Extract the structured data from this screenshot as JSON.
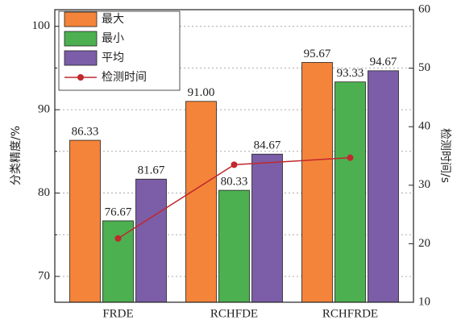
{
  "chart_data": {
    "type": "bar",
    "categories": [
      "FRDE",
      "RCHFDE",
      "RCHFRDE"
    ],
    "ylabel": "分类精度/%",
    "y2label": "检测时间/s",
    "ylim": [
      66.9,
      102.0
    ],
    "yticks": [
      70,
      80,
      90,
      100
    ],
    "y_minor_ticks": [
      75,
      85,
      95
    ],
    "y2lim": [
      10,
      60
    ],
    "y2ticks": [
      10,
      20,
      30,
      40,
      50,
      60
    ],
    "grid": true,
    "legend": "upper left",
    "series": [
      {
        "name": "最大",
        "color": "#f4843a",
        "values": [
          86.33,
          91.0,
          95.67
        ],
        "value_labels": [
          "86.33",
          "91.00",
          "95.67"
        ]
      },
      {
        "name": "最小",
        "color": "#4cb050",
        "values": [
          76.67,
          80.33,
          93.33
        ],
        "value_labels": [
          "76.67",
          "80.33",
          "93.33"
        ]
      },
      {
        "name": "平均",
        "color": "#7b5ea7",
        "values": [
          81.67,
          84.67,
          94.67
        ],
        "value_labels": [
          "81.67",
          "84.67",
          "94.67"
        ]
      },
      {
        "name": "检测时间",
        "color": "#c0282d",
        "type": "line",
        "axis": "y2",
        "values": [
          20.9,
          33.5,
          34.7
        ]
      }
    ]
  }
}
